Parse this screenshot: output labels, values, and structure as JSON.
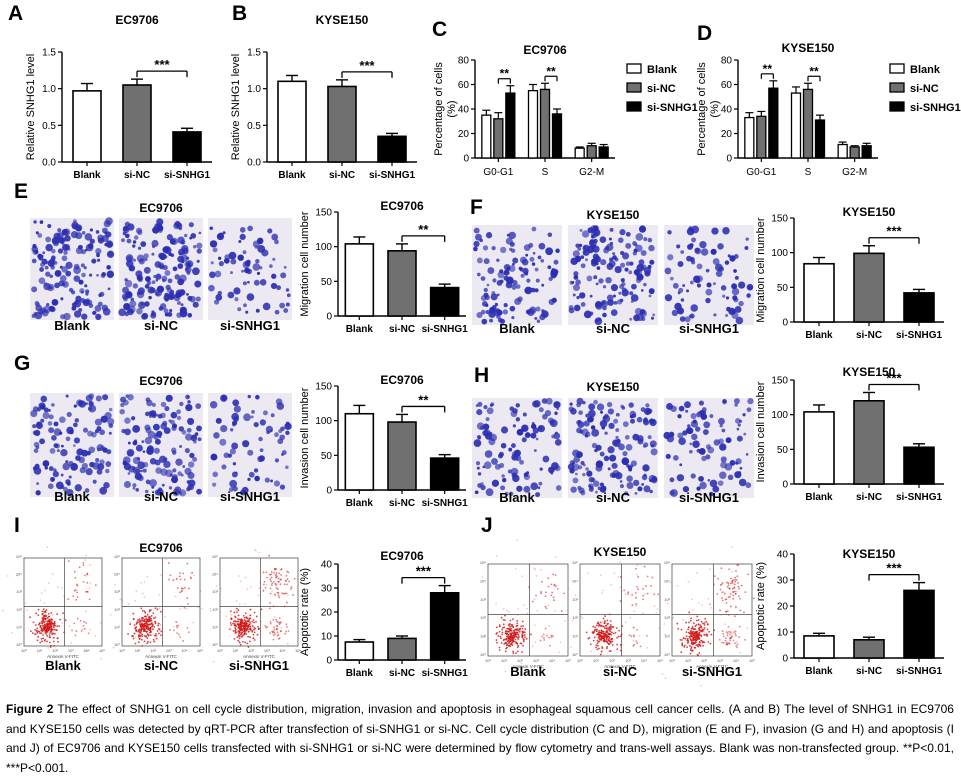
{
  "panels": {
    "A": "A",
    "B": "B",
    "C": "C",
    "D": "D",
    "E": "E",
    "F": "F",
    "G": "G",
    "H": "H",
    "I": "I",
    "J": "J"
  },
  "sig": {
    "p2": "**",
    "p3": "***"
  },
  "chart_data": [
    {
      "id": "A",
      "type": "bar",
      "title": "EC9706",
      "ylabel": "Relative SNHG1 level",
      "ylim": [
        0,
        1.5
      ],
      "yticks": [
        "0.0",
        "0.5",
        "1.0",
        "1.5"
      ],
      "categories": [
        "Blank",
        "si-NC",
        "si-SNHG1"
      ],
      "values": [
        0.97,
        1.05,
        0.41
      ],
      "errors": [
        0.1,
        0.08,
        0.05
      ],
      "fills": [
        "#ffffff",
        "#707070",
        "#000000"
      ],
      "sig": {
        "from": 1,
        "to": 2,
        "label": "***"
      }
    },
    {
      "id": "B",
      "type": "bar",
      "title": "KYSE150",
      "ylabel": "Relative SNHG1 level",
      "ylim": [
        0,
        1.5
      ],
      "yticks": [
        "0.0",
        "0.5",
        "1.0",
        "1.5"
      ],
      "categories": [
        "Blank",
        "si-NC",
        "si-SNHG1"
      ],
      "values": [
        1.1,
        1.03,
        0.35
      ],
      "errors": [
        0.08,
        0.09,
        0.04
      ],
      "fills": [
        "#ffffff",
        "#707070",
        "#000000"
      ],
      "sig": {
        "from": 1,
        "to": 2,
        "label": "***"
      }
    },
    {
      "id": "C",
      "type": "grouped-bar",
      "title": "EC9706",
      "ylabel": "Percentage of cells (%)",
      "ylim": [
        0,
        80
      ],
      "yticks": [
        "0",
        "20",
        "40",
        "60",
        "80"
      ],
      "categories": [
        "G0-G1",
        "S",
        "G2-M"
      ],
      "series": [
        {
          "name": "Blank",
          "values": [
            35,
            55,
            8
          ],
          "errors": [
            4,
            5,
            1
          ],
          "fill": "#ffffff"
        },
        {
          "name": "si-NC",
          "values": [
            32,
            56,
            10
          ],
          "errors": [
            5,
            5,
            2
          ],
          "fill": "#707070"
        },
        {
          "name": "si-SNHG1",
          "values": [
            53,
            36,
            9
          ],
          "errors": [
            6,
            4,
            2
          ],
          "fill": "#000000"
        }
      ],
      "sig": [
        {
          "group": 0,
          "label": "**"
        },
        {
          "group": 1,
          "label": "**"
        }
      ],
      "legend_pos": "right"
    },
    {
      "id": "D",
      "type": "grouped-bar",
      "title": "KYSE150",
      "ylabel": "Percentage of cells (%)",
      "ylim": [
        0,
        80
      ],
      "yticks": [
        "0",
        "20",
        "40",
        "60",
        "80"
      ],
      "categories": [
        "G0-G1",
        "S",
        "G2-M"
      ],
      "series": [
        {
          "name": "Blank",
          "values": [
            33,
            53,
            11
          ],
          "errors": [
            4,
            5,
            2
          ],
          "fill": "#ffffff"
        },
        {
          "name": "si-NC",
          "values": [
            34,
            56,
            9
          ],
          "errors": [
            4,
            5,
            1
          ],
          "fill": "#707070"
        },
        {
          "name": "si-SNHG1",
          "values": [
            57,
            31,
            10
          ],
          "errors": [
            6,
            4,
            2
          ],
          "fill": "#000000"
        }
      ],
      "sig": [
        {
          "group": 0,
          "label": "**"
        },
        {
          "group": 1,
          "label": "**"
        }
      ],
      "legend_pos": "right"
    },
    {
      "id": "E",
      "type": "bar",
      "title": "EC9706",
      "ylabel": "Migration cell number",
      "ylim": [
        0,
        150
      ],
      "yticks": [
        "0",
        "50",
        "100",
        "150"
      ],
      "categories": [
        "Blank",
        "si-NC",
        "si-SNHG1"
      ],
      "values": [
        104,
        94,
        41
      ],
      "errors": [
        10,
        10,
        5
      ],
      "fills": [
        "#ffffff",
        "#707070",
        "#000000"
      ],
      "sig": {
        "from": 1,
        "to": 2,
        "label": "**"
      }
    },
    {
      "id": "F",
      "type": "bar",
      "title": "KYSE150",
      "ylabel": "Migration cell number",
      "ylim": [
        0,
        150
      ],
      "yticks": [
        "0",
        "50",
        "100",
        "150"
      ],
      "categories": [
        "Blank",
        "si-NC",
        "si-SNHG1"
      ],
      "values": [
        84,
        99,
        42
      ],
      "errors": [
        9,
        11,
        5
      ],
      "fills": [
        "#ffffff",
        "#707070",
        "#000000"
      ],
      "sig": {
        "from": 1,
        "to": 2,
        "label": "***"
      }
    },
    {
      "id": "G",
      "type": "bar",
      "title": "EC9706",
      "ylabel": "Invasion cell number",
      "ylim": [
        0,
        150
      ],
      "yticks": [
        "0",
        "50",
        "100",
        "150"
      ],
      "categories": [
        "Blank",
        "si-NC",
        "si-SNHG1"
      ],
      "values": [
        110,
        98,
        46
      ],
      "errors": [
        12,
        11,
        5
      ],
      "fills": [
        "#ffffff",
        "#707070",
        "#000000"
      ],
      "sig": {
        "from": 1,
        "to": 2,
        "label": "**"
      }
    },
    {
      "id": "H",
      "type": "bar",
      "title": "KYSE150",
      "ylabel": "Invasion cell number",
      "ylim": [
        0,
        150
      ],
      "yticks": [
        "0",
        "50",
        "100",
        "150"
      ],
      "categories": [
        "Blank",
        "si-NC",
        "si-SNHG1"
      ],
      "values": [
        104,
        120,
        53
      ],
      "errors": [
        10,
        12,
        5
      ],
      "fills": [
        "#ffffff",
        "#707070",
        "#000000"
      ],
      "sig": {
        "from": 1,
        "to": 2,
        "label": "***"
      }
    },
    {
      "id": "I",
      "type": "bar",
      "title": "EC9706",
      "ylabel": "Apoptotic rate (%)",
      "ylim": [
        0,
        40
      ],
      "yticks": [
        "0",
        "10",
        "20",
        "30",
        "40"
      ],
      "categories": [
        "Blank",
        "si-NC",
        "si-SNHG1"
      ],
      "values": [
        7.5,
        9,
        28
      ],
      "errors": [
        1,
        1,
        3
      ],
      "fills": [
        "#ffffff",
        "#707070",
        "#000000"
      ],
      "sig": {
        "from": 1,
        "to": 2,
        "label": "***"
      }
    },
    {
      "id": "J",
      "type": "bar",
      "title": "KYSE150",
      "ylabel": "Apoptotic rate (%)",
      "ylim": [
        0,
        40
      ],
      "yticks": [
        "0",
        "10",
        "20",
        "30",
        "40"
      ],
      "categories": [
        "Blank",
        "si-NC",
        "si-SNHG1"
      ],
      "values": [
        8.5,
        7,
        26
      ],
      "errors": [
        1,
        1,
        3
      ],
      "fills": [
        "#ffffff",
        "#707070",
        "#000000"
      ],
      "sig": {
        "from": 1,
        "to": 2,
        "label": "***"
      }
    }
  ],
  "micrographs": {
    "E": {
      "title": "EC9706",
      "labels": [
        "Blank",
        "si-NC",
        "si-SNHG1"
      ]
    },
    "F": {
      "title": "KYSE150",
      "labels": [
        "Blank",
        "si-NC",
        "si-SNHG1"
      ]
    },
    "G": {
      "title": "EC9706",
      "labels": [
        "Blank",
        "si-NC",
        "si-SNHG1"
      ]
    },
    "H": {
      "title": "KYSE150",
      "labels": [
        "Blank",
        "si-NC",
        "si-SNHG1"
      ]
    },
    "I": {
      "title": "EC9706",
      "labels": [
        "Blank",
        "si-NC",
        "si-SNHG1"
      ]
    },
    "J": {
      "title": "KYSE150",
      "labels": [
        "Blank",
        "si-NC",
        "si-SNHG1"
      ]
    }
  },
  "flow_axis_label": "Annexin V-FITC",
  "flow_tick_labels": [
    "10⁰",
    "10¹",
    "10²",
    "10³",
    "10⁴",
    "10⁵"
  ],
  "caption": {
    "fig": "Figure 2",
    "text": "The effect of SNHG1 on cell cycle distribution, migration, invasion and apoptosis in esophageal squamous cell cancer cells. (A and B) The level of SNHG1 in EC9706 and KYSE150 cells was detected by qRT-PCR after transfection of si-SNHG1 or si-NC. Cell cycle distribution (C and D), migration (E and F), invasion (G and H) and apoptosis (I and J) of EC9706 and KYSE150 cells transfected with si-SNHG1 or si-NC were determined by flow cytometry and trans-well assays. Blank was non-transfected group. **P<0.01, ***P<0.001."
  },
  "colors": {
    "stain": "#2b2fb0",
    "flow": "#d21e1e"
  }
}
